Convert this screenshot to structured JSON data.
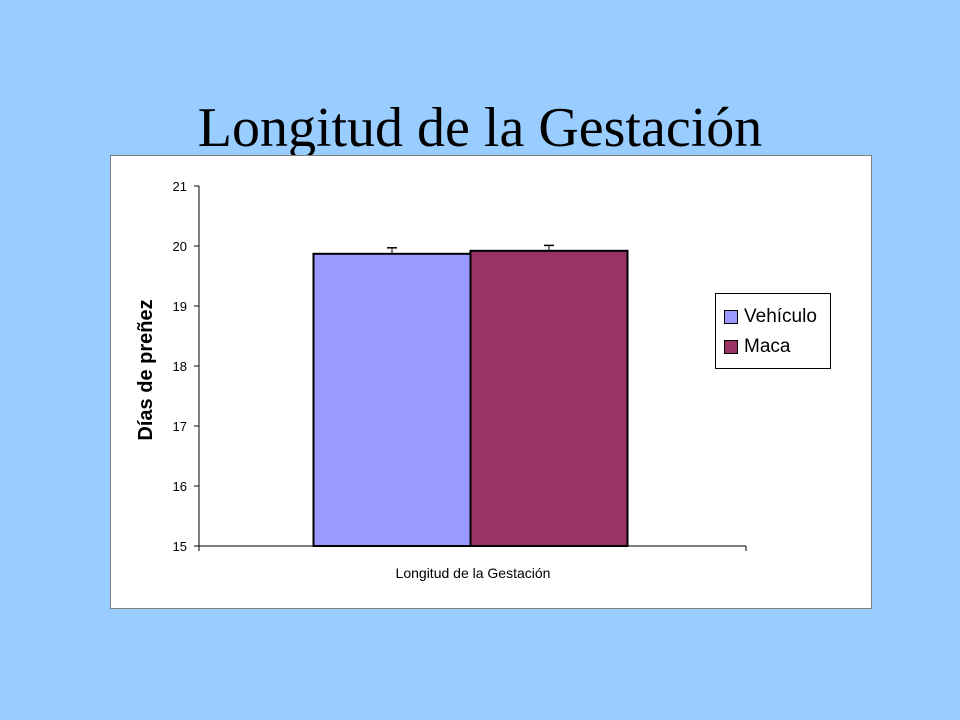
{
  "slide": {
    "title": "Longitud de la Gestación",
    "background": "#99ccff"
  },
  "chart_data": {
    "type": "bar",
    "title": "",
    "categories": [
      "Longitud de la Gestación"
    ],
    "xlabel": "Longitud de la Gestación",
    "ylabel": "Días de preñez",
    "ylim": [
      15,
      21
    ],
    "yticks": [
      "15",
      "16",
      "17",
      "18",
      "19",
      "20",
      "21"
    ],
    "grid": false,
    "legend_position": "right",
    "series": [
      {
        "name": "Vehículo",
        "values": [
          19.87
        ],
        "error": [
          0.1
        ],
        "color": "#9999ff"
      },
      {
        "name": "Maca",
        "values": [
          19.92
        ],
        "error": [
          0.09
        ],
        "color": "#993366"
      }
    ]
  }
}
